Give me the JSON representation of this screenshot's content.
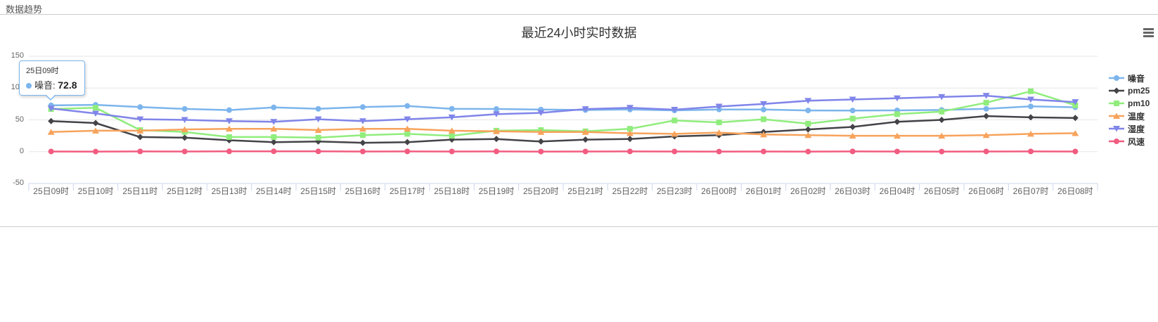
{
  "panel": {
    "header": "数据趋势"
  },
  "tooltip": {
    "header": "25日09时",
    "series_label": "噪音:",
    "value": "72.8",
    "series_color": "#7cb5ec"
  },
  "chart_data": {
    "type": "line",
    "title": "最近24小时实时数据",
    "categories": [
      "25日09时",
      "25日10时",
      "25日11时",
      "25日12时",
      "25日13时",
      "25日14时",
      "25日15时",
      "25日16时",
      "25日17时",
      "25日18时",
      "25日19时",
      "25日20时",
      "25日21时",
      "25日22时",
      "25日23时",
      "26日00时",
      "26日01时",
      "26日02时",
      "26日03时",
      "26日04时",
      "26日05时",
      "26日06时",
      "26日07时",
      "26日08时"
    ],
    "series": [
      {
        "name": "噪音",
        "color": "#7cb5ec",
        "marker": "circle",
        "values": [
          72.8,
          73.6,
          70.1,
          67.2,
          65.4,
          69.6,
          67.3,
          70.2,
          71.9,
          67.4,
          67.1,
          66.2,
          65.5,
          66.3,
          64.9,
          66.4,
          66.2,
          64.8,
          64.7,
          64.9,
          65.6,
          67.4,
          71.2,
          69.8
        ]
      },
      {
        "name": "pm25",
        "color": "#434348",
        "marker": "diamond",
        "values": [
          48,
          45,
          23,
          22,
          18,
          15,
          16,
          14,
          15,
          19,
          20,
          16,
          19,
          20,
          24,
          26,
          31,
          35,
          39,
          47,
          50,
          56,
          54,
          53
        ]
      },
      {
        "name": "pm10",
        "color": "#90ed7d",
        "marker": "square",
        "values": [
          67,
          69,
          34,
          31,
          23,
          23,
          22,
          26,
          28,
          25,
          33,
          34,
          32,
          36,
          49,
          46,
          51,
          44,
          52,
          59,
          63,
          77,
          95,
          73
        ]
      },
      {
        "name": "温度",
        "color": "#f7a35c",
        "marker": "triangle",
        "values": [
          31,
          33,
          33,
          35,
          36,
          36,
          34,
          36,
          36,
          33,
          32,
          31,
          31,
          29,
          28,
          30,
          27,
          26,
          25,
          25,
          25,
          26,
          28,
          29
        ]
      },
      {
        "name": "湿度",
        "color": "#8085e9",
        "marker": "triangle-down",
        "values": [
          68,
          60,
          51,
          50,
          48,
          47,
          51,
          48,
          51,
          54,
          59,
          61,
          67,
          69,
          66,
          71,
          75,
          80,
          82,
          84,
          86,
          88,
          82,
          78
        ]
      },
      {
        "name": "风速",
        "color": "#f15c80",
        "marker": "circle",
        "values": [
          0.3,
          0.2,
          0.4,
          0.3,
          0.5,
          0.6,
          0.5,
          0.3,
          0.4,
          0.3,
          0.4,
          0.2,
          0.3,
          0.4,
          0.3,
          0.2,
          0.3,
          0.2,
          0.4,
          0.3,
          0.2,
          0.3,
          0.4,
          0.3
        ]
      }
    ],
    "ylim": [
      -50,
      150
    ],
    "yticks": [
      150,
      100,
      50,
      0,
      -50
    ],
    "grid": true,
    "legend_position": "right"
  }
}
